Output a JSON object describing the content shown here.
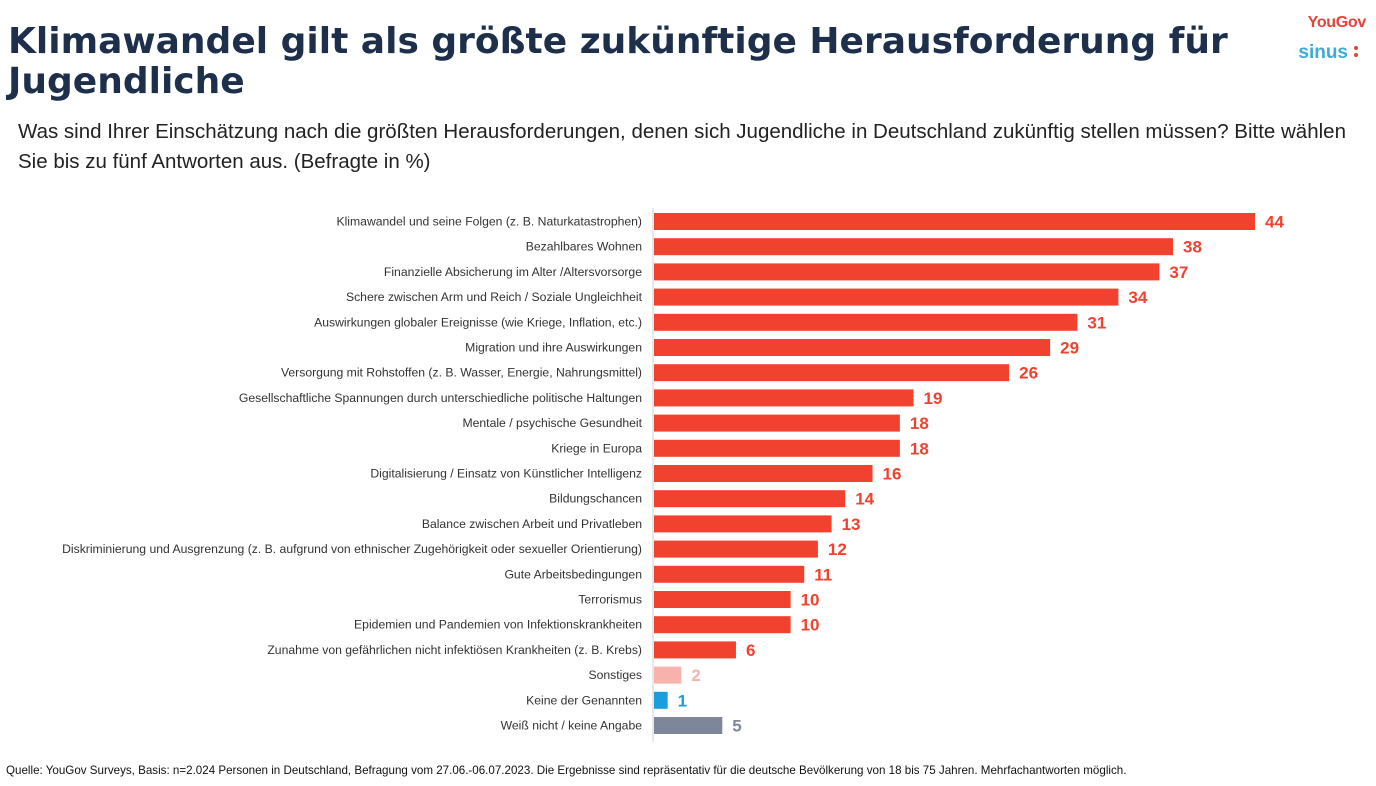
{
  "header": {
    "title": "Klimawandel gilt als größte zukünftige Herausforderung für Jugendliche",
    "subtitle": "Was sind Ihrer Einschätzung nach die größten Herausforderungen, denen sich Jugendliche in Deutschland zukünftig stellen müssen? Bitte wählen Sie bis zu fünf Antworten aus. (Befragte in %)"
  },
  "logos": {
    "yougov": "YouGov",
    "sinus": "sinus"
  },
  "footnote": "Quelle: YouGov Surveys, Basis: n=2.024 Personen in Deutschland, Befragung vom 27.06.-06.07.2023. Die Ergebnisse sind repräsentativ für die deutsche Bevölkerung von 18 bis 75 Jahren. Mehrfachantworten möglich.",
  "colors": {
    "main": "#f1412f",
    "other": "#f7b3ab",
    "none": "#1a9fdb",
    "dontknow": "#7d8799",
    "title": "#1d2f4a"
  },
  "chart_data": {
    "type": "bar",
    "orientation": "horizontal",
    "categories": [
      "Klimawandel und seine Folgen (z. B.  Naturkatastrophen)",
      "Bezahlbares Wohnen",
      "Finanzielle Absicherung im Alter /Altersvorsorge",
      "Schere zwischen Arm und Reich / Soziale Ungleichheit",
      "Auswirkungen globaler Ereignisse (wie Kriege, Inflation, etc.)",
      "Migration und ihre Auswirkungen",
      "Versorgung mit Rohstoffen (z. B. Wasser, Energie, Nahrungsmittel)",
      "Gesellschaftliche Spannungen durch unterschiedliche politische Haltungen",
      "Mentale / psychische Gesundheit",
      "Kriege in Europa",
      "Digitalisierung / Einsatz von Künstlicher Intelligenz",
      "Bildungschancen",
      "Balance zwischen Arbeit und Privatleben",
      "Diskriminierung und Ausgrenzung (z. B. aufgrund von ethnischer Zugehörigkeit oder sexueller Orientierung)",
      "Gute Arbeitsbedingungen",
      "Terrorismus",
      "Epidemien und Pandemien von Infektionskrankheiten",
      "Zunahme von gefährlichen nicht infektiösen Krankheiten (z. B. Krebs)",
      "Sonstiges",
      "Keine der Genannten",
      "Weiß nicht / keine Angabe"
    ],
    "values": [
      44,
      38,
      37,
      34,
      31,
      29,
      26,
      19,
      18,
      18,
      16,
      14,
      13,
      12,
      11,
      10,
      10,
      6,
      2,
      1,
      5
    ],
    "bar_colors": [
      "main",
      "main",
      "main",
      "main",
      "main",
      "main",
      "main",
      "main",
      "main",
      "main",
      "main",
      "main",
      "main",
      "main",
      "main",
      "main",
      "main",
      "main",
      "other",
      "none",
      "dontknow"
    ],
    "xlim": [
      0,
      44
    ],
    "grid": false,
    "unit": "%"
  }
}
